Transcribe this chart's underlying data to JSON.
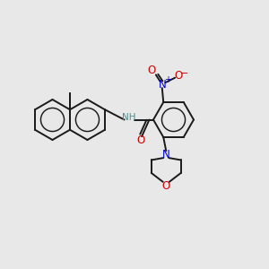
{
  "background_color": "#e8e8e8",
  "bond_color": "#1a1a1a",
  "nitrogen_color": "#0000cc",
  "oxygen_color": "#cc0000",
  "nh_color": "#4a8f8f",
  "bond_width": 1.4,
  "figsize": [
    3.0,
    3.0
  ],
  "dpi": 100,
  "xlim": [
    0,
    10
  ],
  "ylim": [
    0,
    10
  ]
}
